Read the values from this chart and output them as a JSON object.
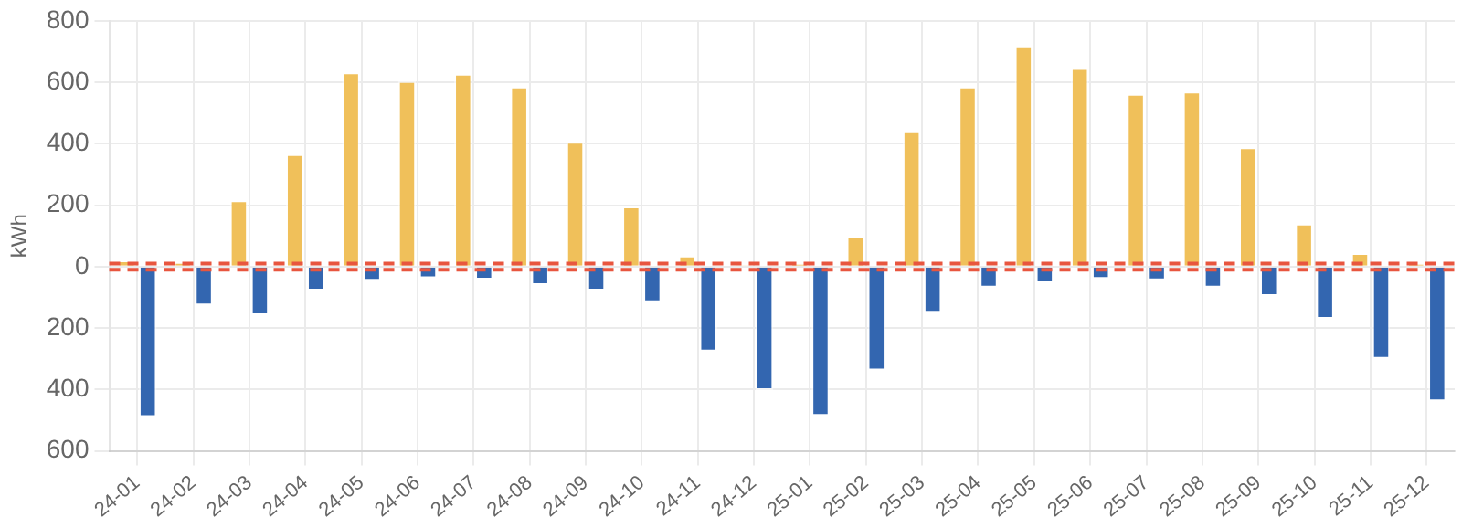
{
  "chart_data": {
    "type": "bar",
    "ylabel": "kWh",
    "categories": [
      "24-01",
      "24-02",
      "24-03",
      "24-04",
      "24-05",
      "24-06",
      "24-07",
      "24-08",
      "24-09",
      "24-10",
      "24-11",
      "24-12",
      "25-01",
      "25-02",
      "25-03",
      "25-04",
      "25-05",
      "25-06",
      "25-07",
      "25-08",
      "25-09",
      "25-10",
      "25-11",
      "25-12"
    ],
    "series": [
      {
        "color": "#f0c05a",
        "values": [
          20,
          15,
          216,
          366,
          632,
          604,
          628,
          586,
          406,
          196,
          36,
          5,
          10,
          98,
          440,
          586,
          720,
          646,
          562,
          570,
          388,
          140,
          44,
          10
        ]
      },
      {
        "color": "#3366b0",
        "values": [
          -490,
          -126,
          -158,
          -78,
          -46,
          -38,
          -42,
          -60,
          -78,
          -116,
          -276,
          -402,
          -486,
          -338,
          -150,
          -68,
          -54,
          -40,
          -44,
          -68,
          -96,
          -170,
          -300,
          -438
        ]
      }
    ],
    "ylim": [
      -600,
      800
    ],
    "yticks": [
      {
        "value": -600,
        "label": "600"
      },
      {
        "value": -400,
        "label": "400"
      },
      {
        "value": -200,
        "label": "200"
      },
      0,
      200,
      400,
      600,
      800
    ],
    "ref_lines": [
      {
        "axis": "y",
        "value": 10,
        "color": "#e8563f",
        "line_style": "dashed"
      },
      {
        "axis": "y",
        "value": -10,
        "color": "#e8563f",
        "line_style": "dashed"
      }
    ],
    "grid": true
  }
}
